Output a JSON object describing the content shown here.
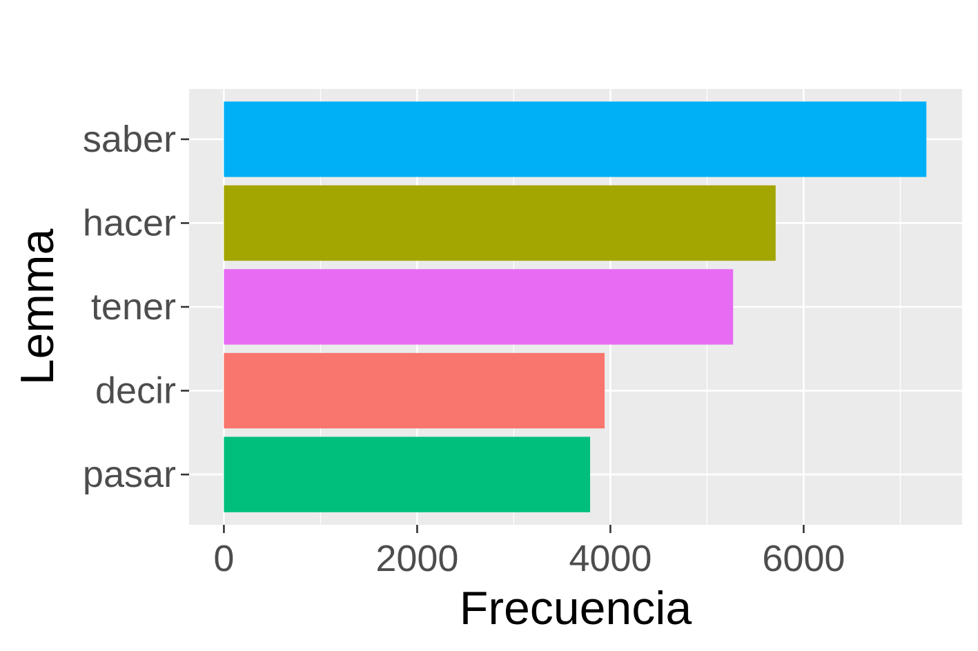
{
  "chart_data": {
    "type": "bar",
    "orientation": "horizontal",
    "categories": [
      "saber",
      "hacer",
      "tener",
      "decir",
      "pasar"
    ],
    "values": [
      7270,
      5710,
      5270,
      3940,
      3790
    ],
    "colors": [
      "#00B0F6",
      "#A3A500",
      "#E76BF3",
      "#F8766D",
      "#00BF7D"
    ],
    "xlabel": "Frecuencia",
    "ylabel": "Lemma",
    "xlim": [
      -360,
      7640
    ],
    "x_ticks": [
      0,
      2000,
      4000,
      6000
    ],
    "x_ticks_minor": [
      1000,
      3000,
      5000,
      7000
    ],
    "x_tick_labels": [
      "0",
      "2000",
      "4000",
      "6000"
    ],
    "grid": true,
    "legend": "none",
    "panel_background": "#EBEBEB",
    "gridline_color": "#FFFFFF"
  }
}
